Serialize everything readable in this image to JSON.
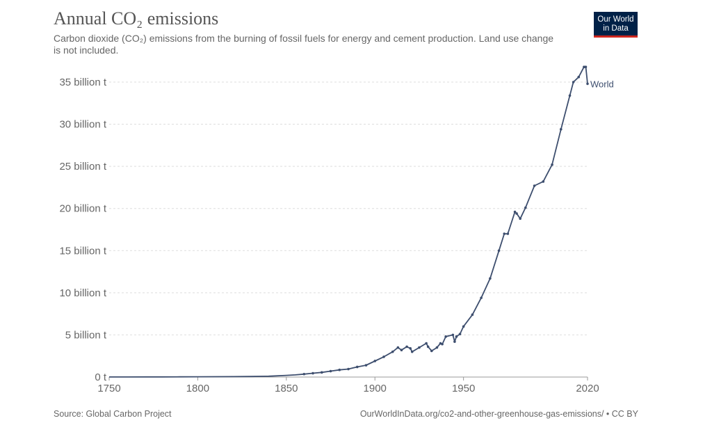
{
  "header": {
    "title": "Annual CO₂ emissions",
    "subtitle": "Carbon dioxide (CO₂) emissions from the burning of fossil fuels for energy and cement production. Land use change is not included.",
    "logo_line1": "Our World",
    "logo_line2": "in Data"
  },
  "footer": {
    "source": "Source: Global Carbon Project",
    "link": "OurWorldInData.org/co2-and-other-greenhouse-gas-emissions/ • CC BY"
  },
  "colors": {
    "line": "#3d4e6e",
    "logo_bg": "#002147",
    "logo_accent": "#ce261e",
    "grid": "#dddddd"
  },
  "chart_data": {
    "type": "line",
    "title": "Annual CO₂ emissions",
    "xlim": [
      1750,
      2020
    ],
    "ylim": [
      0,
      35
    ],
    "grid": true,
    "x_ticks": [
      1750,
      1800,
      1850,
      1900,
      1950,
      2020
    ],
    "x_tick_labels": [
      "1750",
      "1800",
      "1850",
      "1900",
      "1950",
      "2020"
    ],
    "y_ticks": [
      0,
      5,
      10,
      15,
      20,
      25,
      30,
      35
    ],
    "y_tick_labels": [
      "0 t",
      "5 billion t",
      "10 billion t",
      "15 billion t",
      "20 billion t",
      "25 billion t",
      "30 billion t",
      "35 billion t"
    ],
    "series": [
      {
        "name": "World",
        "unit": "billion t",
        "x": [
          1750,
          1760,
          1770,
          1780,
          1790,
          1800,
          1810,
          1820,
          1830,
          1840,
          1850,
          1855,
          1860,
          1865,
          1870,
          1875,
          1880,
          1885,
          1890,
          1895,
          1900,
          1905,
          1910,
          1913,
          1915,
          1918,
          1920,
          1921,
          1925,
          1929,
          1930,
          1932,
          1935,
          1937,
          1938,
          1940,
          1944,
          1945,
          1946,
          1948,
          1950,
          1955,
          1960,
          1965,
          1970,
          1973,
          1975,
          1979,
          1980,
          1982,
          1985,
          1990,
          1995,
          2000,
          2005,
          2010,
          2012,
          2015,
          2018,
          2019,
          2020
        ],
        "y": [
          0.01,
          0.01,
          0.015,
          0.02,
          0.025,
          0.03,
          0.04,
          0.05,
          0.07,
          0.1,
          0.2,
          0.26,
          0.35,
          0.45,
          0.55,
          0.7,
          0.85,
          0.95,
          1.2,
          1.4,
          1.9,
          2.4,
          3.0,
          3.5,
          3.2,
          3.6,
          3.4,
          3.0,
          3.5,
          4.0,
          3.6,
          3.1,
          3.5,
          4.0,
          3.9,
          4.8,
          5.0,
          4.2,
          4.8,
          5.1,
          6.0,
          7.4,
          9.4,
          11.7,
          15.0,
          17.0,
          17.0,
          19.6,
          19.4,
          18.8,
          20.1,
          22.7,
          23.2,
          25.2,
          29.4,
          33.4,
          35.0,
          35.6,
          36.8,
          36.8,
          34.8
        ]
      }
    ]
  }
}
